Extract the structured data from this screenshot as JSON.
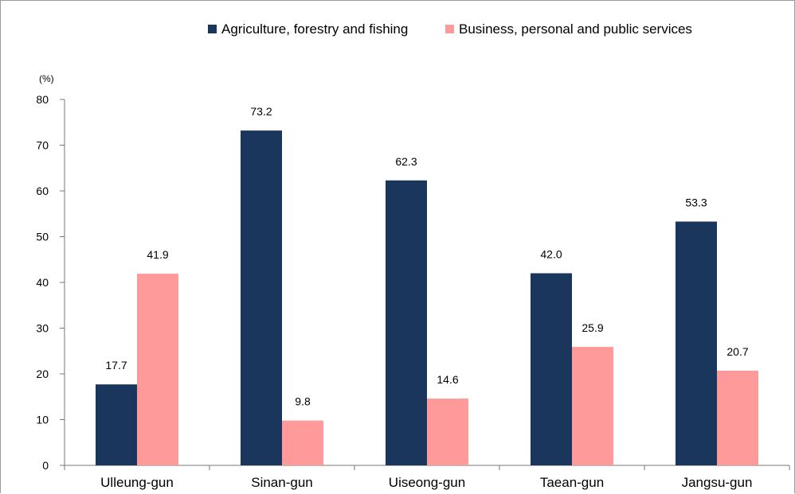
{
  "chart_data": {
    "type": "bar",
    "unit_label": "(%)",
    "categories": [
      "Ulleung-gun",
      "Sinan-gun",
      "Uiseong-gun",
      "Taean-gun",
      "Jangsu-gun"
    ],
    "series": [
      {
        "name": "Agriculture, forestry and fishing",
        "color": "#1b365d",
        "values": [
          17.7,
          73.2,
          62.3,
          42.0,
          53.3
        ],
        "labels": [
          "17.7",
          "73.2",
          "62.3",
          "42.0",
          "53.3"
        ]
      },
      {
        "name": "Business, personal and public services",
        "color": "#ff9a9a",
        "values": [
          41.9,
          9.8,
          14.6,
          25.9,
          20.7
        ],
        "labels": [
          "41.9",
          "9.8",
          "14.6",
          "25.9",
          "20.7"
        ]
      }
    ],
    "ylim": [
      0,
      80
    ],
    "yticks": [
      "0",
      "10",
      "20",
      "30",
      "40",
      "50",
      "60",
      "70",
      "80"
    ],
    "grid": false,
    "legend_position": "top-right"
  }
}
